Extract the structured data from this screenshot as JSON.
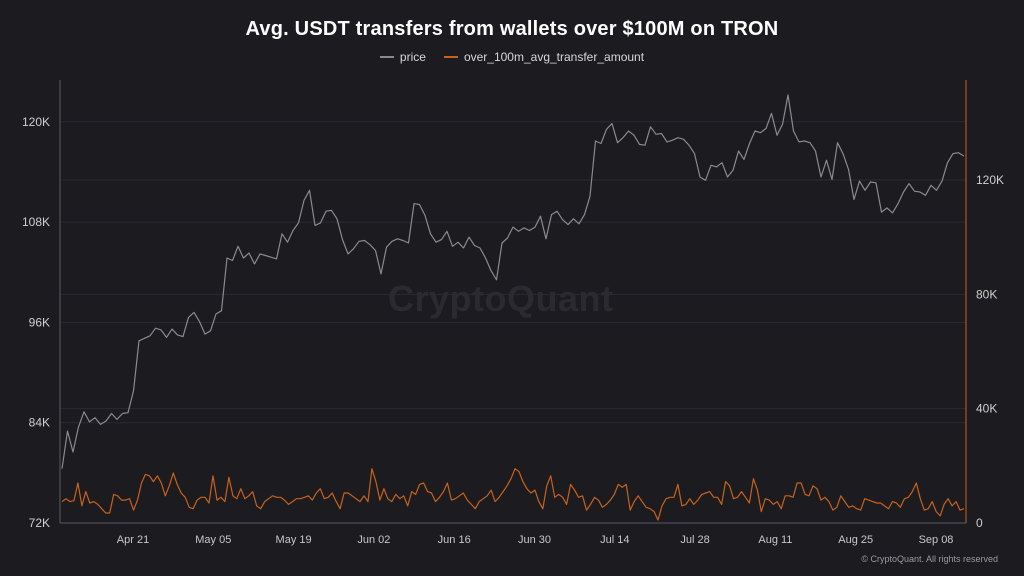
{
  "title": "Avg. USDT transfers from wallets over $100M on TRON",
  "watermark": "CryptoQuant",
  "credit": "© CryptoQuant. All rights reserved",
  "colors": {
    "background": "#1c1b20",
    "price": "#8a8a8f",
    "transfer": "#c8621c",
    "grid": "#2c2b31",
    "axis": "#5a5a60"
  },
  "chart_data": {
    "type": "line",
    "title": "Avg. USDT transfers from wallets over $100M on TRON",
    "legend_position": "top-center",
    "grid": true,
    "x_ticks": [
      "Apr 21",
      "May 05",
      "May 19",
      "Jun 02",
      "Jun 16",
      "Jun 30",
      "Jul 14",
      "Jul 28",
      "Aug 11",
      "Aug 25",
      "Sep 08"
    ],
    "x_range": [
      "Apr 12",
      "Sep 14"
    ],
    "y_left": {
      "ticks": [
        "72K",
        "84K",
        "96K",
        "108K",
        "120K"
      ],
      "range": [
        72000,
        125000
      ]
    },
    "y_right": {
      "ticks": [
        "0",
        "40K",
        "80K",
        "120K"
      ],
      "range": [
        0,
        155000
      ]
    },
    "series": [
      {
        "name": "price",
        "axis": "left",
        "values": [
          78500,
          83000,
          80500,
          83500,
          85300,
          84100,
          84600,
          83800,
          84200,
          85100,
          84400,
          85100,
          85200,
          87800,
          93800,
          94100,
          94400,
          95300,
          95100,
          94200,
          95200,
          94500,
          94300,
          96600,
          97200,
          96100,
          94600,
          95000,
          97000,
          97400,
          103700,
          103400,
          105100,
          103700,
          104300,
          103000,
          104200,
          104000,
          103800,
          103600,
          106600,
          105600,
          107000,
          107900,
          110600,
          111800,
          107600,
          107900,
          109300,
          109400,
          108400,
          105900,
          104200,
          104800,
          105700,
          105800,
          105300,
          104600,
          101800,
          105000,
          105700,
          106000,
          105800,
          105500,
          110200,
          110100,
          108800,
          106600,
          105600,
          105900,
          106900,
          105100,
          105600,
          104900,
          106200,
          105200,
          104900,
          103700,
          102200,
          101100,
          105500,
          106100,
          107400,
          106900,
          107300,
          107000,
          107400,
          108700,
          106000,
          108900,
          109300,
          108300,
          107700,
          108400,
          107800,
          108900,
          111100,
          117700,
          117400,
          119100,
          119800,
          117500,
          118100,
          118900,
          118400,
          117300,
          117200,
          119400,
          118500,
          118600,
          117600,
          117800,
          118100,
          117900,
          117200,
          116200,
          113400,
          113000,
          114800,
          114600,
          115100,
          113400,
          114200,
          116500,
          115500,
          117400,
          118900,
          118700,
          119200,
          121000,
          118400,
          119700,
          123200,
          118900,
          117600,
          117700,
          117500,
          116500,
          113400,
          115400,
          113100,
          117500,
          116200,
          114300,
          110700,
          112900,
          111800,
          112800,
          112700,
          109200,
          109700,
          109100,
          110200,
          111600,
          112600,
          111700,
          111600,
          111200,
          112400,
          111800,
          112900,
          115100,
          116200,
          116300,
          115900
        ]
      },
      {
        "name": "over_100m_avg_transfer_amount",
        "axis": "right",
        "values": [
          7500,
          8500,
          7500,
          7800,
          14000,
          6000,
          11000,
          7000,
          7500,
          6500,
          5000,
          3500,
          3500,
          10000,
          9500,
          8000,
          8000,
          8500,
          4500,
          8000,
          14000,
          17000,
          16500,
          14500,
          16500,
          14000,
          9500,
          13000,
          17500,
          13500,
          10500,
          9000,
          5500,
          5000,
          8000,
          9000,
          9000,
          7000,
          16500,
          8000,
          9000,
          7500,
          16000,
          9500,
          8500,
          12000,
          8500,
          9500,
          11000,
          6000,
          5000,
          7500,
          8500,
          9500,
          9000,
          9000,
          8000,
          6500,
          7500,
          8500,
          8500,
          9000,
          9500,
          8000,
          10500,
          12000,
          8500,
          9000,
          10500,
          7500,
          5000,
          10500,
          10500,
          9500,
          8500,
          7500,
          9500,
          7500,
          19000,
          14500,
          8000,
          12000,
          8500,
          7500,
          10000,
          8500,
          9500,
          6000,
          11000,
          10000,
          13500,
          14000,
          11000,
          10500,
          7500,
          9000,
          11000,
          14000,
          8000,
          8500,
          9500,
          10500,
          8000,
          6500,
          5000,
          7500,
          8500,
          9500,
          11500,
          7500,
          9000,
          11000,
          13000,
          15500,
          19000,
          18000,
          14500,
          12000,
          10500,
          11500,
          7500,
          5000,
          13000,
          16500,
          9000,
          10000,
          9000,
          6500,
          13500,
          11500,
          9000,
          9500,
          4500,
          6500,
          9000,
          8000,
          5500,
          6500,
          8000,
          10000,
          13500,
          12500,
          13500,
          4500,
          7500,
          9500,
          7500,
          5500,
          5000,
          4000,
          1000,
          6000,
          8500,
          9000,
          9000,
          13500,
          6000,
          6500,
          8500,
          6500,
          8000,
          10000,
          10500,
          11000,
          9000,
          9000,
          6500,
          14500,
          13000,
          8500,
          9000,
          11000,
          9000,
          7000,
          15500,
          11500,
          4000,
          8500,
          8000,
          6500,
          7500,
          5000,
          9500,
          9500,
          9000,
          14000,
          14000,
          10000,
          9500,
          13000,
          12000,
          8000,
          9000,
          7500,
          4500,
          5500,
          9500,
          7500,
          5500,
          6000,
          5000,
          4500,
          8500,
          8000,
          7500,
          7000,
          7000,
          6000,
          5000,
          7500,
          7000,
          5500,
          8500,
          9000,
          11000,
          14000,
          8500,
          4500,
          5000,
          7500,
          4000,
          2500,
          6500,
          8500,
          6000,
          7500,
          4500,
          5000
        ]
      }
    ]
  }
}
